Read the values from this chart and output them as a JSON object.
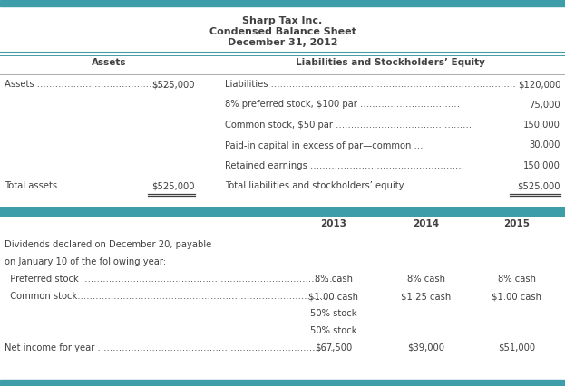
{
  "title_line1": "Sharp Tax Inc.",
  "title_line2": "Condensed Balance Sheet",
  "title_line3": "December 31, 2012",
  "header_left": "Assets",
  "header_right": "Liabilities and Stockholders’ Equity",
  "teal_color": "#3d9da8",
  "bg_color": "#ffffff",
  "text_color": "#404040",
  "gray_line": "#aaaaaa",
  "left_rows": [
    {
      "label": "Assets ………………………………………",
      "value": "$525,000",
      "total": false
    },
    {
      "label": "",
      "value": "",
      "total": false
    },
    {
      "label": "",
      "value": "",
      "total": false
    },
    {
      "label": "",
      "value": "",
      "total": false
    },
    {
      "label": "",
      "value": "",
      "total": false
    },
    {
      "label": "Total assets …………………………",
      "value": "$525,000",
      "total": true
    }
  ],
  "right_rows": [
    {
      "label": "Liabilities ………………………………………………………………………",
      "value": "$120,000",
      "total": false
    },
    {
      "label": "8% preferred stock, $100 par ……………………………",
      "value": "75,000",
      "total": false
    },
    {
      "label": "Common stock, $50 par ………………………………………",
      "value": "150,000",
      "total": false
    },
    {
      "label": "Paid-in capital in excess of par—common …",
      "value": "30,000",
      "total": false
    },
    {
      "label": "Retained earnings ……………………………………………",
      "value": "150,000",
      "total": false
    },
    {
      "label": "Total liabilities and stockholders’ equity …………",
      "value": "$525,000",
      "total": true
    }
  ],
  "year_headers": [
    "2013",
    "2014",
    "2015"
  ],
  "lower_rows": [
    {
      "label": "Dividends declared on December 20, payable",
      "vals": [
        "",
        "",
        ""
      ],
      "indent": false
    },
    {
      "label": "on January 10 of the following year:",
      "vals": [
        "",
        "",
        ""
      ],
      "indent": false
    },
    {
      "label": "  Preferred stock …………………………………………………………………………",
      "vals": [
        "8% cash",
        "8% cash",
        "8% cash"
      ],
      "indent": true
    },
    {
      "label": "  Common stock……………………………………………………………………………",
      "vals": [
        "$1.00 cash",
        "$1.25 cash",
        "$1.00 cash"
      ],
      "indent": true
    },
    {
      "label": "",
      "vals": [
        "50% stock",
        "",
        ""
      ],
      "indent": false
    },
    {
      "label": "Net income for year ……………………………………………………………………",
      "vals": [
        "$67,500",
        "$39,000",
        "$51,000"
      ],
      "indent": false
    }
  ]
}
